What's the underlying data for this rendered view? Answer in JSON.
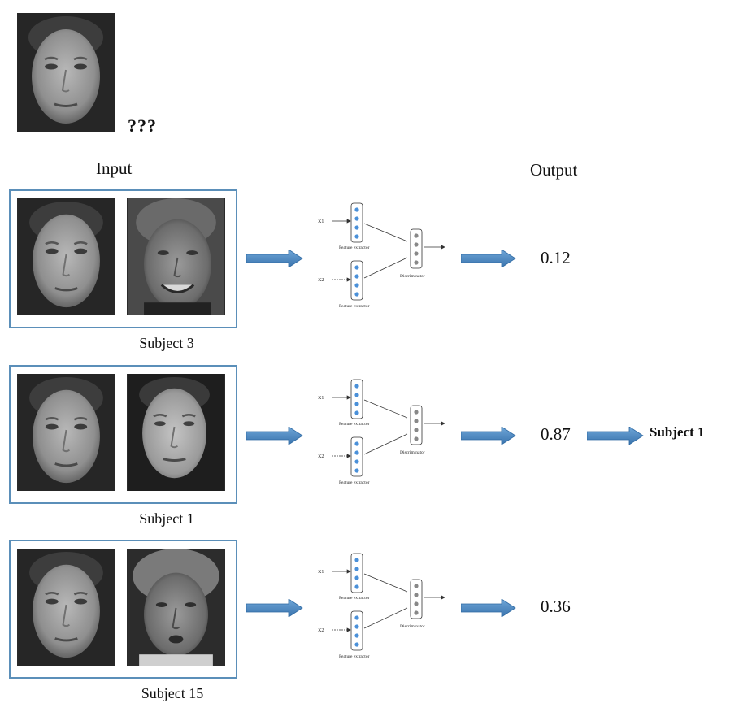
{
  "query": {
    "marker": "???"
  },
  "headers": {
    "input": "Input",
    "output": "Output"
  },
  "network": {
    "input_1": "X1",
    "input_2": "X2",
    "extractor_label": "Feature extractor",
    "discriminator_label": "Discriminator"
  },
  "rows": [
    {
      "subject": "Subject 3",
      "score": "0.12",
      "result": ""
    },
    {
      "subject": "Subject 1",
      "score": "0.87",
      "result": "Subject 1"
    },
    {
      "subject": "Subject 15",
      "score": "0.36",
      "result": ""
    }
  ],
  "colors": {
    "box_border": "#5b8fb9",
    "arrow_fill": "#4a86c0",
    "node_fill": "#4a90d9"
  }
}
